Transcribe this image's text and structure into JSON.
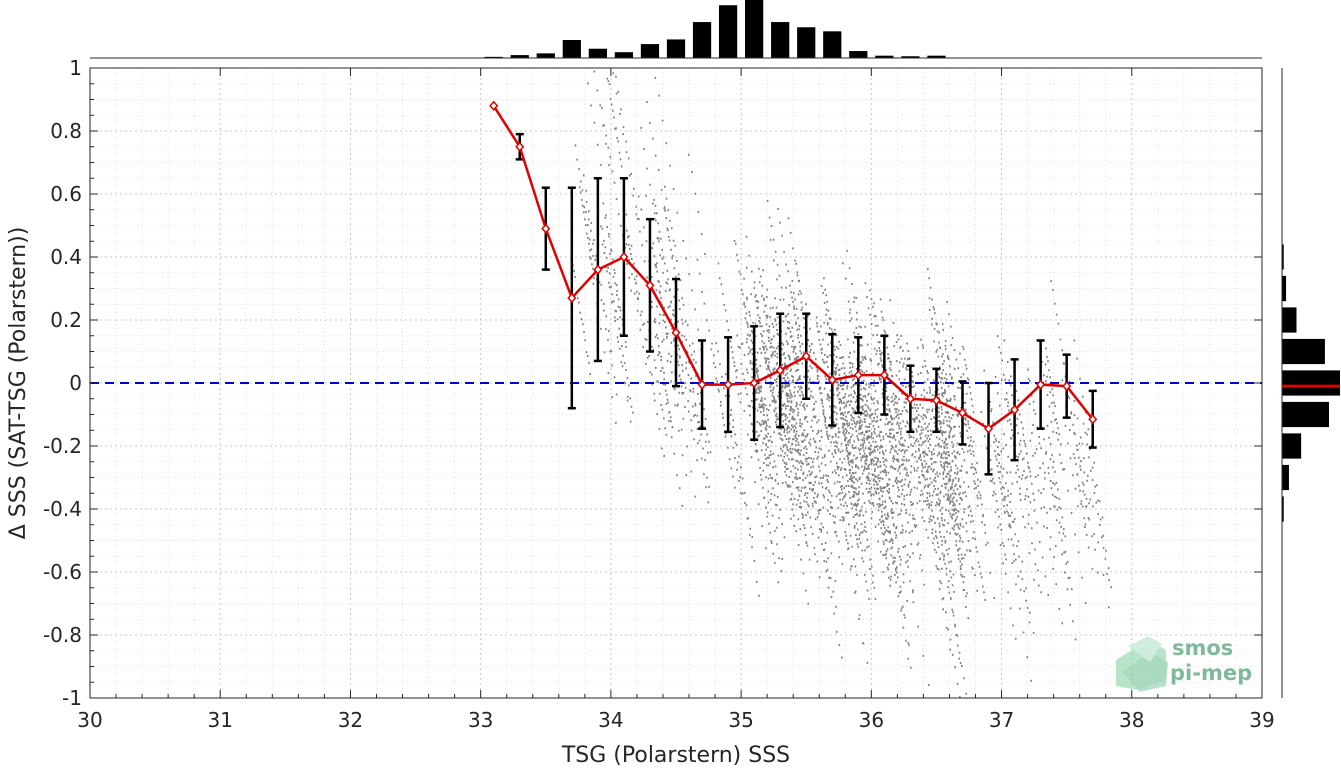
{
  "chart_data": {
    "type": "scatter",
    "xlabel": "TSG (Polarstern) SSS",
    "ylabel": "Δ SSS (SAT-TSG (Polarstern))",
    "xlim": [
      30,
      39
    ],
    "ylim": [
      -1,
      1
    ],
    "xticks": [
      "30",
      "31",
      "32",
      "33",
      "34",
      "35",
      "36",
      "37",
      "38",
      "39"
    ],
    "yticks": [
      "1",
      "0.8",
      "0.6",
      "0.4",
      "0.2",
      "0",
      "-0.2",
      "-0.4",
      "-0.6",
      "-0.8",
      "-1"
    ],
    "grid": true,
    "reference_line": {
      "y": 0,
      "style": "dashed",
      "color": "#0000cc"
    },
    "mean_series": {
      "color": "#e00000",
      "points": [
        {
          "x": 33.1,
          "y": 0.88,
          "err": null
        },
        {
          "x": 33.3,
          "y": 0.75,
          "err": 0.04
        },
        {
          "x": 33.5,
          "y": 0.49,
          "err": 0.13
        },
        {
          "x": 33.7,
          "y": 0.27,
          "err": 0.35
        },
        {
          "x": 33.9,
          "y": 0.36,
          "err": 0.29
        },
        {
          "x": 34.1,
          "y": 0.4,
          "err": 0.25
        },
        {
          "x": 34.3,
          "y": 0.31,
          "err": 0.21
        },
        {
          "x": 34.5,
          "y": 0.16,
          "err": 0.17
        },
        {
          "x": 34.7,
          "y": -0.005,
          "err": 0.14
        },
        {
          "x": 34.9,
          "y": -0.005,
          "err": 0.15
        },
        {
          "x": 35.1,
          "y": 0.0,
          "err": 0.18
        },
        {
          "x": 35.3,
          "y": 0.04,
          "err": 0.18
        },
        {
          "x": 35.5,
          "y": 0.085,
          "err": 0.135
        },
        {
          "x": 35.7,
          "y": 0.01,
          "err": 0.145
        },
        {
          "x": 35.9,
          "y": 0.025,
          "err": 0.12
        },
        {
          "x": 36.1,
          "y": 0.025,
          "err": 0.125
        },
        {
          "x": 36.3,
          "y": -0.05,
          "err": 0.105
        },
        {
          "x": 36.5,
          "y": -0.055,
          "err": 0.1
        },
        {
          "x": 36.7,
          "y": -0.095,
          "err": 0.1
        },
        {
          "x": 36.9,
          "y": -0.145,
          "err": 0.145
        },
        {
          "x": 37.1,
          "y": -0.085,
          "err": 0.16
        },
        {
          "x": 37.3,
          "y": -0.005,
          "err": 0.14
        },
        {
          "x": 37.5,
          "y": -0.01,
          "err": 0.1
        },
        {
          "x": 37.7,
          "y": -0.115,
          "err": 0.09
        }
      ]
    },
    "scatter": {
      "color": "#808080",
      "trend": {
        "x_range": [
          33.6,
          37.8
        ],
        "y_at_x": [
          [
            33.6,
            0.75
          ],
          [
            34.5,
            0.35
          ],
          [
            35.5,
            0.05
          ],
          [
            36.5,
            -0.05
          ],
          [
            37.6,
            -0.12
          ]
        ]
      }
    },
    "top_histogram": {
      "bins_x": [
        33.1,
        33.3,
        33.5,
        33.7,
        33.9,
        34.1,
        34.3,
        34.5,
        34.7,
        34.9,
        35.1,
        35.3,
        35.5,
        35.7,
        35.9,
        36.1,
        36.3,
        36.5,
        36.7,
        36.9,
        37.1,
        37.3,
        37.5
      ],
      "heights": [
        0.02,
        0.05,
        0.08,
        0.31,
        0.16,
        0.1,
        0.24,
        0.32,
        0.62,
        0.91,
        1.0,
        0.62,
        0.53,
        0.46,
        0.12,
        0.04,
        0.03,
        0.04,
        0.0,
        0.0,
        0.0,
        0.0,
        0.0
      ]
    },
    "right_histogram": {
      "bins_y": [
        0.4,
        0.3,
        0.2,
        0.1,
        0.0,
        -0.1,
        -0.2,
        -0.3,
        -0.4
      ],
      "widths": [
        0.03,
        0.07,
        0.25,
        0.74,
        1.0,
        0.81,
        0.33,
        0.12,
        0.03
      ],
      "mean_line": {
        "y": -0.01,
        "color": "#e00000"
      }
    }
  },
  "logo": {
    "line1": "smos",
    "line2": "pi-mep"
  }
}
